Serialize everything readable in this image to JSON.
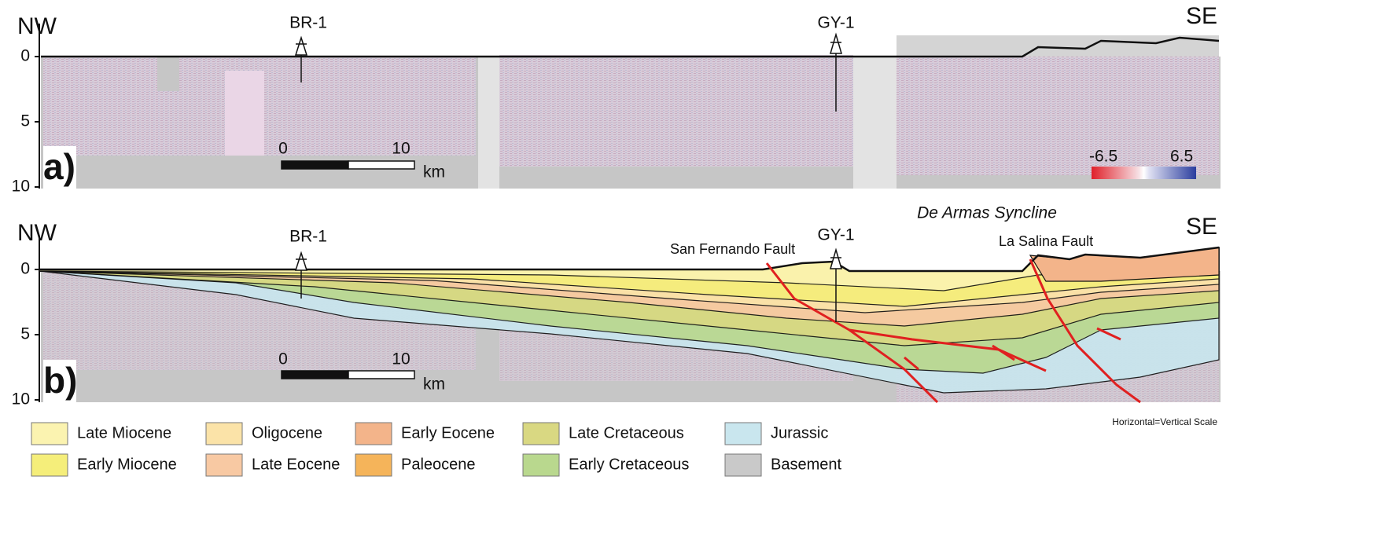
{
  "panel_a": {
    "label": "a)",
    "left": "NW",
    "right": "SE",
    "wells": [
      "BR-1",
      "GY-1"
    ],
    "depth_ticks": [
      0,
      5,
      10
    ],
    "scale_bar": {
      "start": 0,
      "end": 10,
      "unit": "km"
    },
    "colorbar": {
      "min": -6.5,
      "max": 6.5
    }
  },
  "panel_b": {
    "label": "b)",
    "left": "NW",
    "right": "SE",
    "wells": [
      "BR-1",
      "GY-1"
    ],
    "depth_ticks": [
      0,
      5,
      10
    ],
    "scale_bar": {
      "start": 0,
      "end": 10,
      "unit": "km"
    },
    "title": "De Armas Syncline",
    "faults": [
      "San Fernando Fault",
      "La Salina Fault"
    ]
  },
  "legend": {
    "items": [
      {
        "name": "Late Miocene",
        "color": "#fbf3b0"
      },
      {
        "name": "Early Miocene",
        "color": "#f5ee7a"
      },
      {
        "name": "Oligocene",
        "color": "#fbe3a8"
      },
      {
        "name": "Late Eocene",
        "color": "#f8c9a3"
      },
      {
        "name": "Early Eocene",
        "color": "#f3b48a"
      },
      {
        "name": "Paleocene",
        "color": "#f5b45a"
      },
      {
        "name": "Late Cretaceous",
        "color": "#d9d882"
      },
      {
        "name": "Early Cretaceous",
        "color": "#b9d88e"
      },
      {
        "name": "Jurassic",
        "color": "#c9e6ee"
      },
      {
        "name": "Basement",
        "color": "#c9c9c9"
      }
    ]
  },
  "note": "Horizontal=Vertical Scale"
}
